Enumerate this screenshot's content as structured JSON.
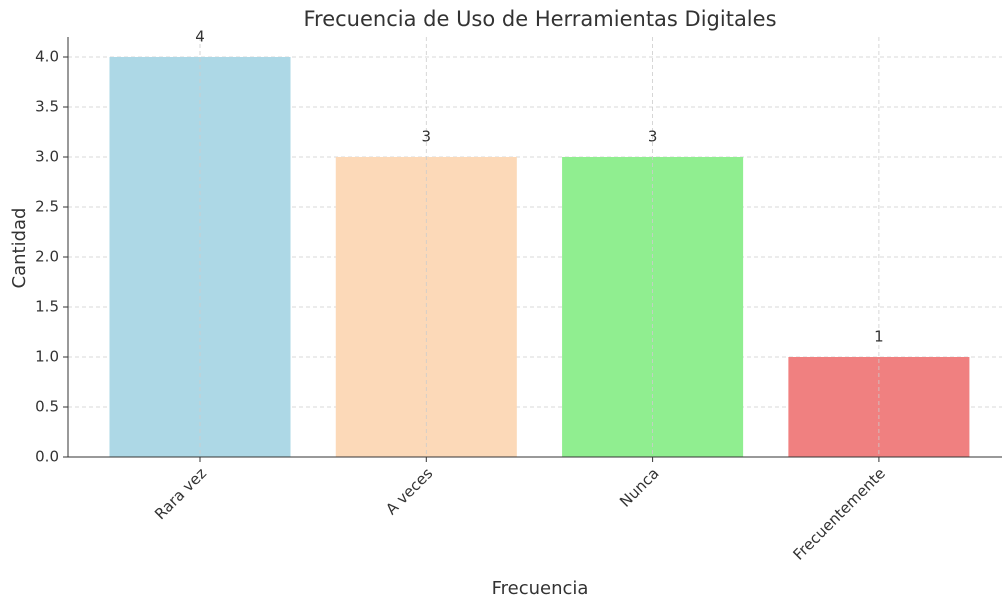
{
  "chart_data": {
    "type": "bar",
    "title": "Frecuencia de Uso de Herramientas Digitales",
    "x_label": "Frecuencia",
    "y_label": "Cantidad",
    "categories": [
      "Rara vez",
      "A veces",
      "Nunca",
      "Frecuentemente"
    ],
    "values": [
      4,
      3,
      3,
      1
    ],
    "colors": [
      "#add8e6",
      "#fcd9b8",
      "#90ee90",
      "#f08080"
    ],
    "ylim": [
      0,
      4.2
    ],
    "yticks": [
      {
        "value": 0,
        "label": "0.0"
      },
      0.5,
      {
        "value": 1,
        "label": "1.0"
      },
      1.5,
      {
        "value": 2,
        "label": "2.0"
      },
      2.5,
      {
        "value": 3,
        "label": "3.0"
      },
      3.5,
      {
        "value": 4,
        "label": "4.0"
      }
    ],
    "grid": true
  }
}
